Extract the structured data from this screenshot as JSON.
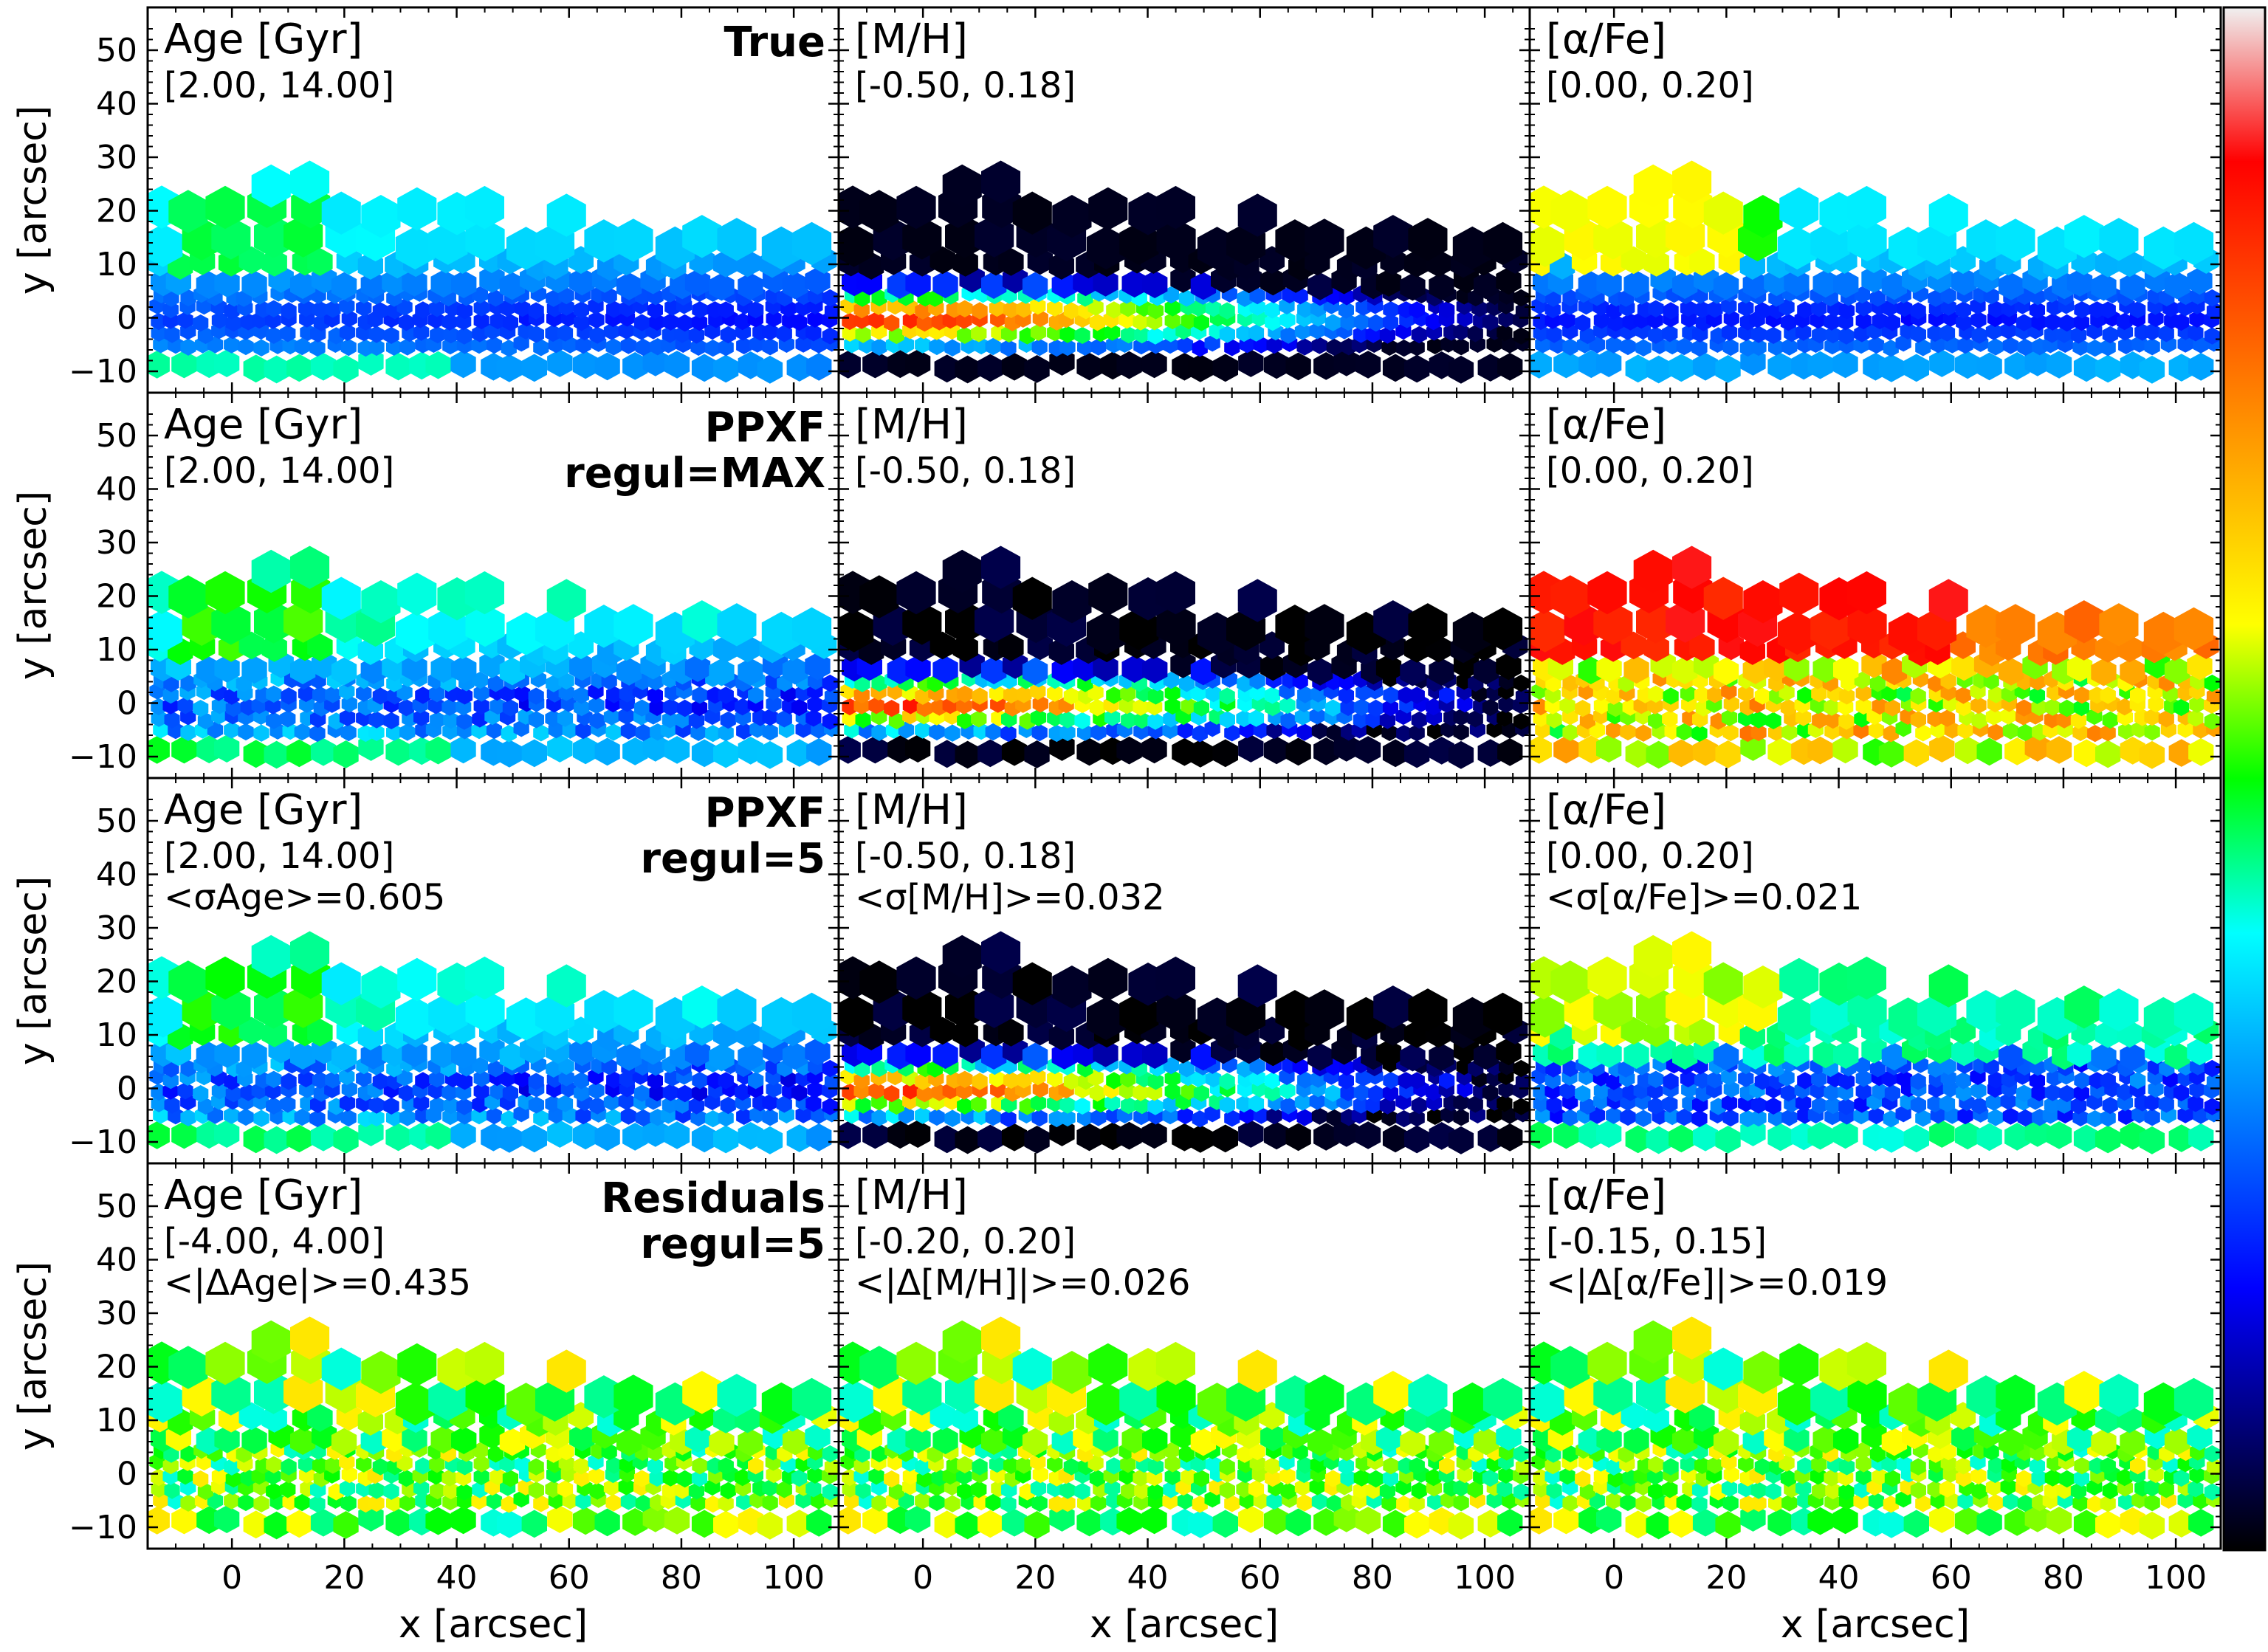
{
  "chart_data": {
    "type": "heatmap",
    "layout": {
      "rows": 4,
      "cols": 3
    },
    "x_axis": {
      "label": "x [arcsec]",
      "range": [
        -15,
        108
      ],
      "ticks": [
        0,
        20,
        40,
        60,
        80,
        100
      ]
    },
    "y_axis": {
      "label": "y [arcsec]",
      "range": [
        -14,
        58
      ],
      "ticks": [
        -10,
        0,
        10,
        20,
        30,
        40,
        50
      ]
    },
    "data_extent": {
      "x": [
        -13,
        107
      ],
      "y": [
        -9,
        27
      ]
    },
    "colorbar": {
      "position": "right",
      "colormap": "sauron",
      "ticks": "none"
    },
    "row_labels": [
      [
        "True"
      ],
      [
        "PPXF",
        "regul=MAX"
      ],
      [
        "PPXF",
        "regul=5"
      ],
      [
        "Residuals",
        "regul=5"
      ]
    ],
    "panels": [
      {
        "row": 0,
        "col": 0,
        "title": "Age [Gyr]",
        "range_label": "[2.00, 14.00]",
        "stat": "",
        "vmin": 2.0,
        "vmax": 14.0,
        "pattern": "age_true"
      },
      {
        "row": 0,
        "col": 1,
        "title": "[M/H]",
        "range_label": "[-0.50, 0.18]",
        "stat": "",
        "vmin": -0.5,
        "vmax": 0.18,
        "pattern": "metal_true"
      },
      {
        "row": 0,
        "col": 2,
        "title": "[α/Fe]",
        "range_label": "[0.00, 0.20]",
        "stat": "",
        "vmin": 0.0,
        "vmax": 0.2,
        "pattern": "alpha_true"
      },
      {
        "row": 1,
        "col": 0,
        "title": "Age [Gyr]",
        "range_label": "[2.00, 14.00]",
        "stat": "",
        "vmin": 2.0,
        "vmax": 14.0,
        "pattern": "age_max"
      },
      {
        "row": 1,
        "col": 1,
        "title": "[M/H]",
        "range_label": "[-0.50, 0.18]",
        "stat": "",
        "vmin": -0.5,
        "vmax": 0.18,
        "pattern": "metal_max"
      },
      {
        "row": 1,
        "col": 2,
        "title": "[α/Fe]",
        "range_label": "[0.00, 0.20]",
        "stat": "",
        "vmin": 0.0,
        "vmax": 0.2,
        "pattern": "alpha_max"
      },
      {
        "row": 2,
        "col": 0,
        "title": "Age [Gyr]",
        "range_label": "[2.00, 14.00]",
        "stat": "<σAge>=0.605",
        "vmin": 2.0,
        "vmax": 14.0,
        "pattern": "age_r5"
      },
      {
        "row": 2,
        "col": 1,
        "title": "[M/H]",
        "range_label": "[-0.50, 0.18]",
        "stat": "<σ[M/H]>=0.032",
        "vmin": -0.5,
        "vmax": 0.18,
        "pattern": "metal_r5"
      },
      {
        "row": 2,
        "col": 2,
        "title": "[α/Fe]",
        "range_label": "[0.00, 0.20]",
        "stat": "<σ[α/Fe]>=0.021",
        "vmin": 0.0,
        "vmax": 0.2,
        "pattern": "alpha_r5"
      },
      {
        "row": 3,
        "col": 0,
        "title": "Age [Gyr]",
        "range_label": "[-4.00, 4.00]",
        "stat": "<|ΔAge|>=0.435",
        "vmin": -4.0,
        "vmax": 4.0,
        "pattern": "resid"
      },
      {
        "row": 3,
        "col": 1,
        "title": "[M/H]",
        "range_label": "[-0.20, 0.20]",
        "stat": "<|Δ[M/H]|>=0.026",
        "vmin": -0.2,
        "vmax": 0.2,
        "pattern": "resid"
      },
      {
        "row": 3,
        "col": 2,
        "title": "[α/Fe]",
        "range_label": "[-0.15, 0.15]",
        "stat": "<|Δ[α/Fe]|>=0.019",
        "vmin": -0.15,
        "vmax": 0.15,
        "pattern": "resid"
      }
    ]
  }
}
